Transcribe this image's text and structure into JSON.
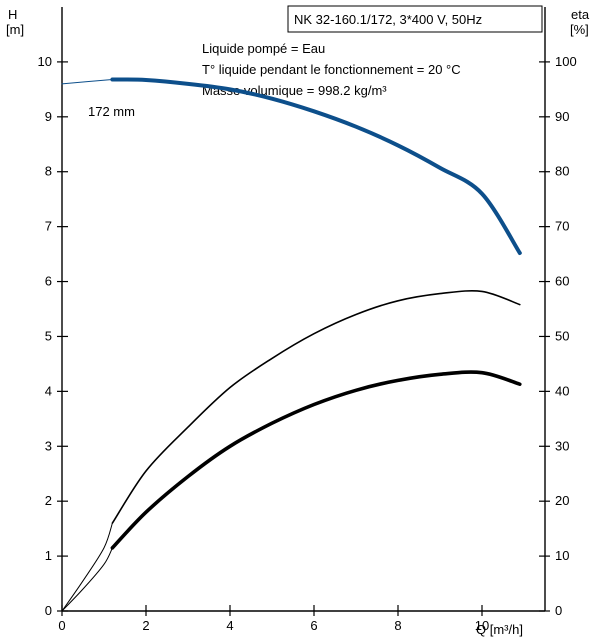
{
  "chart_data": {
    "type": "line",
    "title": "NK 32-160.1/172, 3*400 V, 50Hz",
    "annotations": [
      "Liquide pompé = Eau",
      "T° liquide pendant le fonctionnement = 20 °C",
      "Masse volumique = 998.2 kg/m³"
    ],
    "xlabel": "Q [m³/h]",
    "ylabel_left": {
      "top": "H",
      "bottom": "[m]"
    },
    "ylabel_right": {
      "top": "eta",
      "bottom": "[%]"
    },
    "xlim": [
      0,
      11.5
    ],
    "ylim": [
      0,
      11
    ],
    "ylim_right": [
      0,
      110
    ],
    "x_ticks": [
      0,
      2,
      4,
      6,
      8,
      10
    ],
    "y_ticks": [
      0,
      1,
      2,
      3,
      4,
      5,
      6,
      7,
      8,
      9,
      10
    ],
    "y_ticks_right": [
      0,
      10,
      20,
      30,
      40,
      50,
      60,
      70,
      80,
      90,
      100
    ],
    "grid": false,
    "curve_label": "172 mm",
    "series": [
      {
        "axis": "left",
        "color": "#0d4f8b",
        "x": [
          0,
          1.2
        ],
        "y": [
          9.6,
          9.68
        ]
      },
      {
        "axis": "left",
        "color": "#0d4f8b",
        "x": [
          1.2,
          2,
          3,
          4,
          5,
          6,
          7,
          8,
          9,
          10,
          10.9
        ],
        "y": [
          9.68,
          9.67,
          9.6,
          9.5,
          9.33,
          9.1,
          8.82,
          8.48,
          8.07,
          7.6,
          6.52
        ]
      },
      {
        "axis": "right",
        "color": "#000000",
        "x": [
          0,
          0.5,
          1,
          1.2
        ],
        "y": [
          0,
          5.5,
          11.5,
          16
        ]
      },
      {
        "axis": "right",
        "color": "#000000",
        "x": [
          1.2,
          2,
          3,
          4,
          5,
          6,
          7,
          8,
          9,
          10,
          10.9
        ],
        "y": [
          16,
          25.5,
          33.5,
          40.7,
          46,
          50.5,
          54,
          56.5,
          57.8,
          58.2,
          55.8
        ]
      },
      {
        "axis": "right",
        "color": "#000000",
        "x": [
          0,
          0.5,
          1,
          1.2
        ],
        "y": [
          0,
          4,
          8.5,
          11.5
        ]
      },
      {
        "axis": "right",
        "color": "#000000",
        "x": [
          1.2,
          2,
          3,
          4,
          5,
          6,
          7,
          8,
          9,
          10,
          10.9
        ],
        "y": [
          11.5,
          18,
          24.5,
          30,
          34.2,
          37.6,
          40.2,
          42,
          43.1,
          43.4,
          41.3
        ]
      }
    ]
  }
}
